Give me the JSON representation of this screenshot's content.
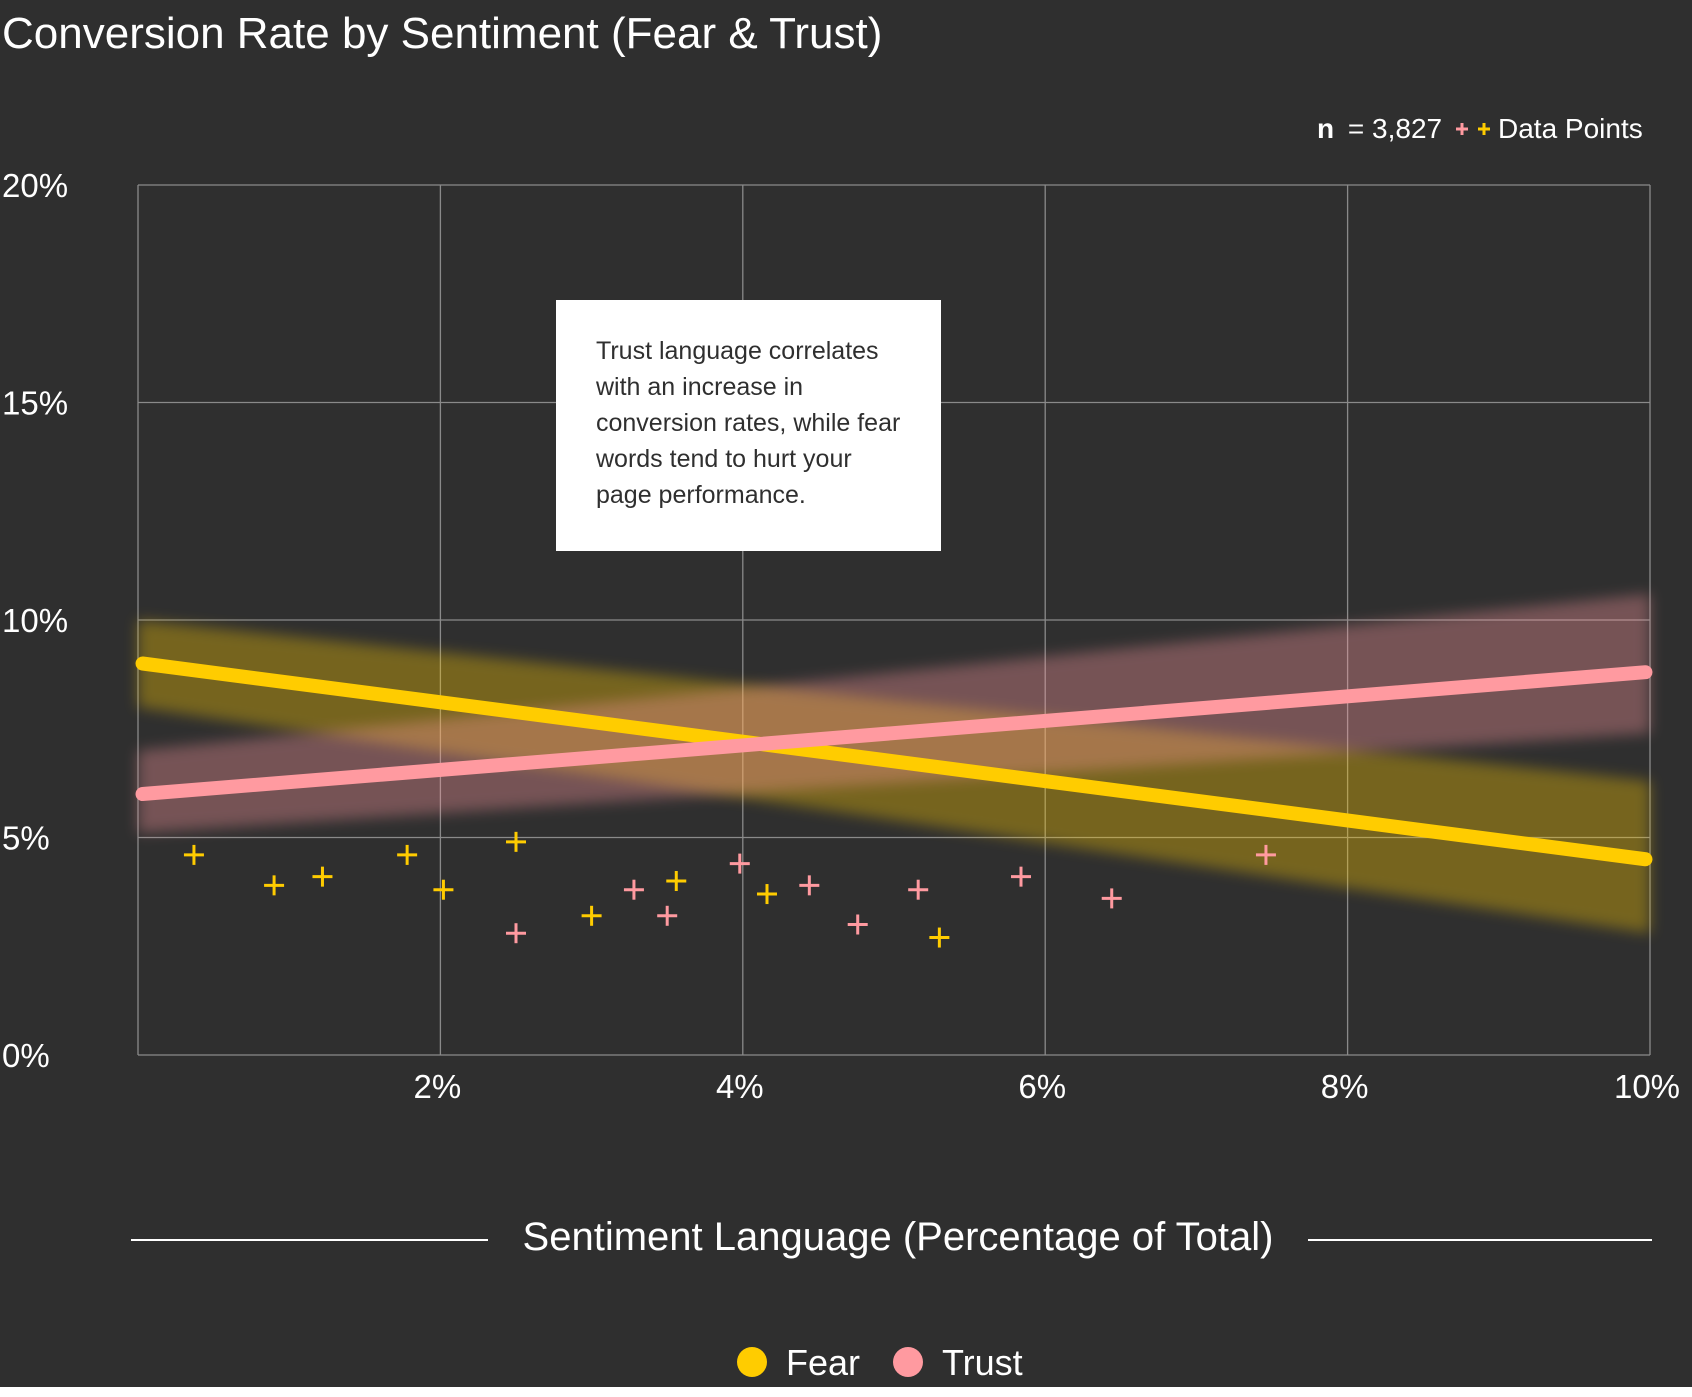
{
  "colors": {
    "background": "#2f2f2f",
    "fear": "#ffcc00",
    "trust": "#ff9aa0",
    "grid": "#8a8a8a",
    "text": "#ffffff",
    "annotation_bg": "#ffffff",
    "annotation_text": "#2f2f2f"
  },
  "chart_data": {
    "type": "scatter",
    "title": "Conversion Rate by Sentiment (Fear & Trust)",
    "xlabel": "Sentiment Language (Percentage of Total)",
    "ylabel": "",
    "xlim": [
      0,
      10
    ],
    "ylim": [
      0,
      20
    ],
    "grid": true,
    "x_ticks": [
      {
        "value": 2,
        "label": "2%"
      },
      {
        "value": 4,
        "label": "4%"
      },
      {
        "value": 6,
        "label": "6%"
      },
      {
        "value": 8,
        "label": "8%"
      },
      {
        "value": 10,
        "label": "10%"
      }
    ],
    "y_ticks": [
      {
        "value": 0,
        "label": "0%"
      },
      {
        "value": 5,
        "label": "5%"
      },
      {
        "value": 10,
        "label": "10%"
      },
      {
        "value": 15,
        "label": "15%"
      },
      {
        "value": 20,
        "label": "20%"
      }
    ],
    "sample_size": {
      "symbol": "n",
      "text": "= 3,827"
    },
    "data_points_label": "Data Points",
    "legend": {
      "position": "bottom-center"
    },
    "series": [
      {
        "name": "Fear",
        "color": "#ffcc00",
        "points": [
          {
            "x": 0.37,
            "y": 4.6
          },
          {
            "x": 0.9,
            "y": 3.9
          },
          {
            "x": 1.22,
            "y": 4.1
          },
          {
            "x": 1.78,
            "y": 4.6
          },
          {
            "x": 2.02,
            "y": 3.8
          },
          {
            "x": 2.5,
            "y": 4.9
          },
          {
            "x": 3.0,
            "y": 3.2
          },
          {
            "x": 3.56,
            "y": 4.0
          },
          {
            "x": 4.16,
            "y": 3.7
          },
          {
            "x": 5.3,
            "y": 2.7
          }
        ],
        "trend": {
          "x": [
            0.03,
            9.97
          ],
          "y": [
            9.0,
            4.5
          ]
        },
        "confidence_band": {
          "x": [
            0,
            10
          ],
          "lower": [
            8.0,
            2.8
          ],
          "upper": [
            10.0,
            6.3
          ]
        }
      },
      {
        "name": "Trust",
        "color": "#ff9aa0",
        "points": [
          {
            "x": 2.5,
            "y": 2.8
          },
          {
            "x": 3.28,
            "y": 3.8
          },
          {
            "x": 3.5,
            "y": 3.2
          },
          {
            "x": 3.98,
            "y": 4.4
          },
          {
            "x": 4.44,
            "y": 3.9
          },
          {
            "x": 4.76,
            "y": 3.0
          },
          {
            "x": 5.16,
            "y": 3.8
          },
          {
            "x": 5.84,
            "y": 4.1
          },
          {
            "x": 6.44,
            "y": 3.6
          },
          {
            "x": 7.46,
            "y": 4.6
          }
        ],
        "trend": {
          "x": [
            0.03,
            9.97
          ],
          "y": [
            6.0,
            8.8
          ]
        },
        "confidence_band": {
          "x": [
            0,
            10
          ],
          "lower": [
            5.1,
            7.4
          ],
          "upper": [
            7.0,
            10.6
          ]
        }
      }
    ],
    "annotations": [
      {
        "lines": [
          "Trust language correlates",
          "with an increase in",
          "conversion rates, while fear",
          "words tend to hurt your",
          "page performance."
        ]
      }
    ]
  }
}
